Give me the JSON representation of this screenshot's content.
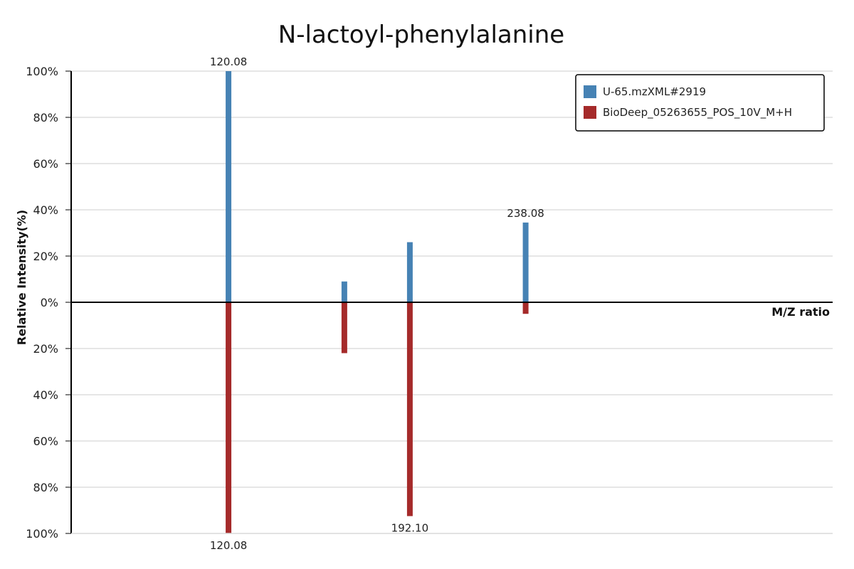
{
  "chart_data": {
    "type": "bar",
    "title": "N-lactoyl-phenylalanine",
    "xlabel": "M/Z ratio",
    "ylabel": "Relative Intensity(%)",
    "ylim": [
      -100,
      100
    ],
    "yticks": [
      {
        "value": 100,
        "label": "100%"
      },
      {
        "value": 80,
        "label": "80%"
      },
      {
        "value": 60,
        "label": "60%"
      },
      {
        "value": 40,
        "label": "40%"
      },
      {
        "value": 20,
        "label": "20%"
      },
      {
        "value": 0,
        "label": "0%"
      },
      {
        "value": -20,
        "label": "20%"
      },
      {
        "value": -40,
        "label": "40%"
      },
      {
        "value": -60,
        "label": "60%"
      },
      {
        "value": -80,
        "label": "80%"
      },
      {
        "value": -100,
        "label": "100%"
      }
    ],
    "grid": true,
    "legend_position": "top-right",
    "series": [
      {
        "name": "U-65.mzXML#2919",
        "color": "#4682b4",
        "direction": "up",
        "peaks": [
          {
            "mz": 120.08,
            "intensity": 100,
            "label": "120.08"
          },
          {
            "mz": 166.09,
            "intensity": 9,
            "label": ""
          },
          {
            "mz": 192.1,
            "intensity": 26,
            "label": ""
          },
          {
            "mz": 238.08,
            "intensity": 34.5,
            "label": "238.08"
          }
        ]
      },
      {
        "name": "BioDeep_05263655_POS_10V_M+H",
        "color": "#a52a2a",
        "direction": "down",
        "peaks": [
          {
            "mz": 120.08,
            "intensity": 100,
            "label": "120.08"
          },
          {
            "mz": 166.09,
            "intensity": 22,
            "label": ""
          },
          {
            "mz": 192.1,
            "intensity": 92.5,
            "label": "192.10"
          },
          {
            "mz": 238.08,
            "intensity": 5,
            "label": ""
          }
        ]
      }
    ]
  }
}
